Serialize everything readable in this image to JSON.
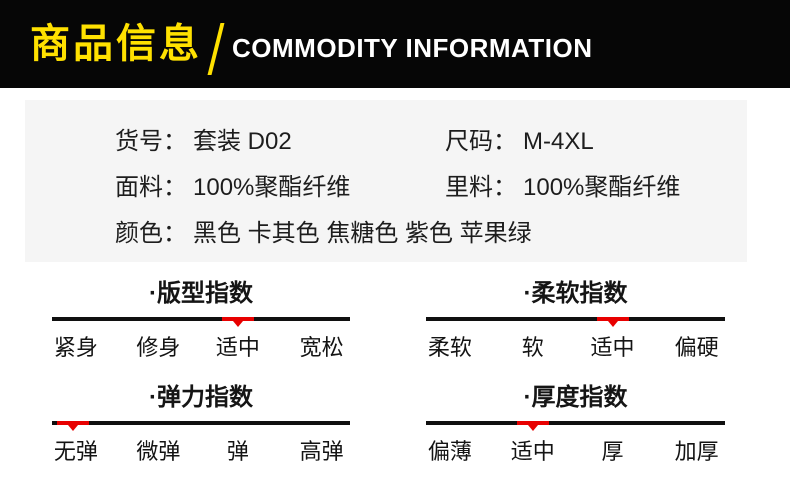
{
  "banner": {
    "title_cn": "商品信息",
    "title_en": "COMMODITY INFORMATION"
  },
  "info": {
    "rows": [
      {
        "left": {
          "label": "货号：",
          "value": "套装 D02"
        },
        "right": {
          "label": "尺码：",
          "value": "M-4XL"
        }
      },
      {
        "left": {
          "label": "面料：",
          "value": "100%聚酯纤维"
        },
        "right": {
          "label": "里料：",
          "value": "100%聚酯纤维"
        }
      },
      {
        "left": {
          "label": "颜色：",
          "value": "黑色 卡其色 焦糖色 紫色 苹果绿"
        }
      }
    ]
  },
  "scales": [
    {
      "title": "·版型指数",
      "labels": [
        "紧身",
        "修身",
        "适中",
        "宽松"
      ],
      "selected": "适中",
      "marker_percent": 62.4
    },
    {
      "title": "·柔软指数",
      "labels": [
        "柔软",
        "软",
        "适中",
        "偏硬"
      ],
      "selected": "适中",
      "marker_percent": 62.4
    },
    {
      "title": "·弹力指数",
      "labels": [
        "无弹",
        "微弹",
        "弹",
        "高弹"
      ],
      "selected": "无弹",
      "marker_percent": 7
    },
    {
      "title": "·厚度指数",
      "labels": [
        "偏薄",
        "适中",
        "厚",
        "加厚"
      ],
      "selected": "适中",
      "marker_percent": 35.8
    }
  ],
  "colors": {
    "accent": "#ffe100",
    "banner_bg": "#060606",
    "panel_bg": "#f5f5f5",
    "line": "#101010",
    "marker_red": "#e80000"
  }
}
